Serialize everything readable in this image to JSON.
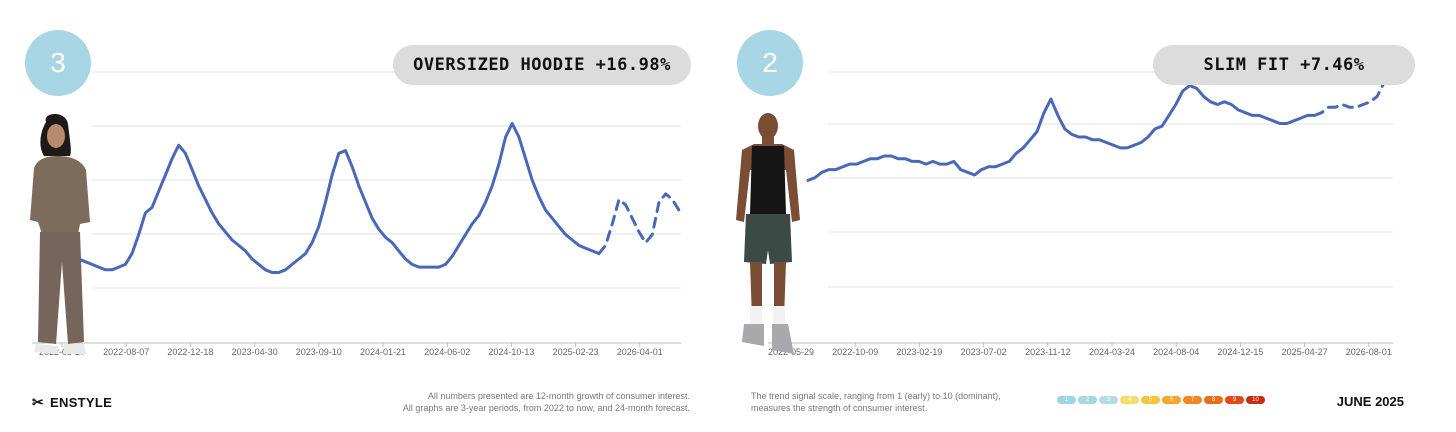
{
  "footer": {
    "brand": "ENSTYLE",
    "note_line1": "All numbers presented are 12-month growth of consumer interest.",
    "note_line2": "All graphs are 3-year periods, from 2022 to now, and 24-month forecast.",
    "scale_line1": "The trend signal scale, ranging from 1 (early) to 10 (dominant),",
    "scale_line2": "measures the strength of consumer interest.",
    "scale_levels": [
      "1",
      "2",
      "3",
      "4",
      "5",
      "6",
      "7",
      "8",
      "9",
      "10"
    ],
    "scale_colors": [
      "#9fd3e6",
      "#a9d6e5",
      "#b4dbe6",
      "#f6dd6e",
      "#f5c542",
      "#f4a72c",
      "#ef8a22",
      "#ea6d1c",
      "#e04a17",
      "#c72c14"
    ],
    "date": "JUNE 2025"
  },
  "charts": [
    {
      "rank": "3",
      "label": "OVERSIZED HOODIE +16.98%",
      "line_color": "#4a68b8",
      "chart_data": {
        "type": "line",
        "title": "OVERSIZED HOODIE +16.98%",
        "x_tick_labels": [
          "2022-03-27",
          "2022-08-07",
          "2022-12-18",
          "2023-04-30",
          "2023-09-10",
          "2024-01-21",
          "2024-06-02",
          "2024-10-13",
          "2025-02-23",
          "2026-04-01"
        ],
        "ylim": [
          0,
          100
        ],
        "grid": true,
        "series": [
          {
            "style": "solid",
            "x": [
              0,
              2,
              4,
              6,
              8,
              10,
              12,
              14,
              16,
              18,
              20,
              22,
              24,
              26,
              28,
              30,
              32,
              34,
              36,
              38,
              40,
              42,
              44,
              46,
              48,
              50,
              52,
              54,
              56,
              58,
              60,
              62,
              64,
              66,
              68,
              70,
              72,
              74,
              76,
              78,
              80,
              82,
              84,
              86,
              88,
              90,
              92,
              94,
              96,
              98,
              100,
              102,
              104,
              106,
              108,
              110,
              112,
              114,
              116,
              118,
              120,
              122,
              124,
              126,
              128,
              130,
              132,
              134,
              136,
              138,
              140,
              142,
              144,
              146,
              148,
              150,
              152,
              154,
              156,
              158
            ],
            "y": [
              33,
              31,
              30,
              29,
              28,
              27,
              27,
              28,
              29,
              33,
              40,
              48,
              50,
              56,
              62,
              68,
              73,
              70,
              64,
              58,
              53,
              48,
              44,
              41,
              38,
              36,
              34,
              31,
              29,
              27,
              26,
              26,
              27,
              29,
              31,
              33,
              37,
              43,
              52,
              62,
              70,
              71,
              65,
              58,
              52,
              46,
              42,
              39,
              37,
              34,
              31,
              29,
              28,
              28,
              28,
              28,
              29,
              32,
              36,
              40,
              44,
              47,
              52,
              58,
              66,
              76,
              81,
              76,
              68,
              60,
              54,
              49,
              46,
              43,
              40,
              38,
              36,
              35,
              34,
              33
            ]
          },
          {
            "style": "dashed",
            "x": [
              158,
              160,
              162,
              164,
              166,
              168,
              170,
              172,
              174,
              176,
              178,
              180,
              182
            ],
            "y": [
              33,
              36,
              44,
              53,
              51,
              46,
              41,
              37,
              40,
              52,
              55,
              53,
              49
            ]
          }
        ]
      }
    },
    {
      "rank": "2",
      "label": "SLIM FIT +7.46%",
      "line_color": "#4a68b8",
      "chart_data": {
        "type": "line",
        "title": "SLIM FIT +7.46%",
        "x_tick_labels": [
          "2022-05-29",
          "2022-10-09",
          "2023-02-19",
          "2023-07-02",
          "2023-11-12",
          "2024-03-24",
          "2024-08-04",
          "2024-12-15",
          "2025-04-27",
          "2026-08-01"
        ],
        "ylim": [
          0,
          100
        ],
        "grid": true,
        "series": [
          {
            "style": "solid",
            "x": [
              0,
              2,
              4,
              6,
              8,
              10,
              12,
              14,
              16,
              18,
              20,
              22,
              24,
              26,
              28,
              30,
              32,
              34,
              36,
              38,
              40,
              42,
              44,
              46,
              48,
              50,
              52,
              54,
              56,
              58,
              60,
              62,
              64,
              66,
              68,
              70,
              72,
              74,
              76,
              78,
              80,
              82,
              84,
              86,
              88,
              90,
              92,
              94,
              96,
              98,
              100,
              102,
              104,
              106,
              108,
              110,
              112,
              114,
              116,
              118,
              120,
              122,
              124,
              126,
              128,
              130,
              132,
              134,
              136,
              138,
              140,
              142,
              144,
              146
            ],
            "y": [
              60,
              61,
              63,
              64,
              64,
              65,
              66,
              66,
              67,
              68,
              68,
              69,
              69,
              68,
              68,
              67,
              67,
              66,
              67,
              66,
              66,
              67,
              64,
              63,
              62,
              64,
              65,
              65,
              66,
              67,
              70,
              72,
              75,
              78,
              85,
              90,
              84,
              79,
              77,
              76,
              76,
              75,
              75,
              74,
              73,
              72,
              72,
              73,
              74,
              76,
              79,
              80,
              84,
              88,
              93,
              95,
              94,
              91,
              89,
              88,
              89,
              88,
              86,
              85,
              84,
              84,
              83,
              82,
              81,
              81,
              82,
              83,
              84,
              84
            ]
          },
          {
            "style": "dashed",
            "x": [
              146,
              148,
              150,
              152,
              154,
              156,
              158,
              160,
              162,
              164,
              166,
              168
            ],
            "y": [
              84,
              85,
              87,
              87,
              88,
              87,
              87,
              88,
              89,
              91,
              96,
              97
            ]
          }
        ]
      }
    }
  ]
}
